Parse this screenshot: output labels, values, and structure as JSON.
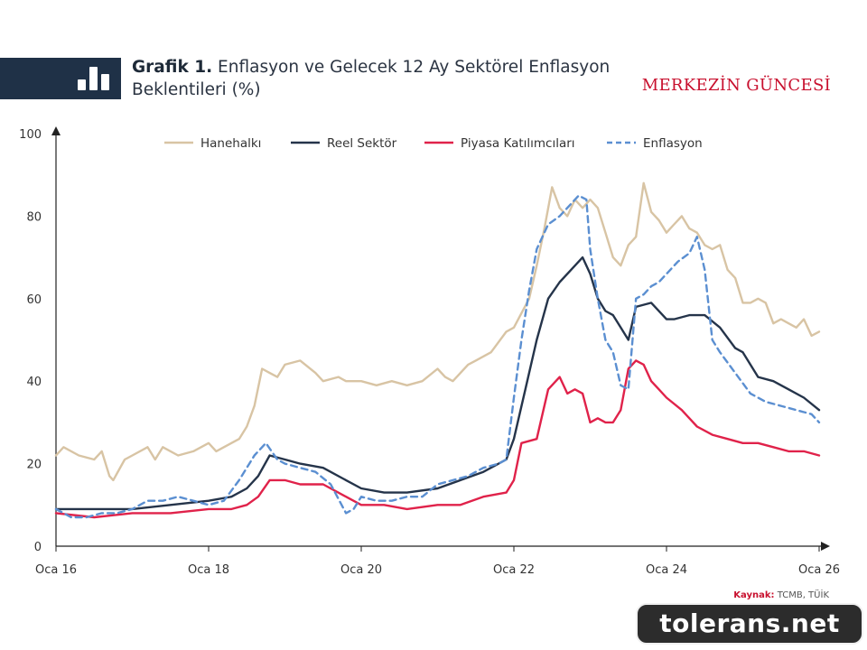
{
  "header": {
    "title_bold": "Grafik 1.",
    "title_rest": " Enflasyon ve Gelecek 12 Ay Sektörel Enflasyon Beklentileri (%)",
    "brand": "MERKEZİN GÜNCESİ"
  },
  "source": {
    "label": "Kaynak:",
    "text": " TCMB, TÜİK"
  },
  "watermark": "tolerans.net",
  "chart_data": {
    "type": "line",
    "title": "Grafik 1. Enflasyon ve Gelecek 12 Ay Sektörel Enflasyon Beklentileri (%)",
    "ylim": [
      0,
      100
    ],
    "yticks": [
      0,
      20,
      40,
      60,
      80,
      100
    ],
    "xlim": [
      2016.0,
      2026.0
    ],
    "xticks": [
      {
        "value": 2016,
        "label": "Oca 16"
      },
      {
        "value": 2018,
        "label": "Oca 18"
      },
      {
        "value": 2020,
        "label": "Oca 20"
      },
      {
        "value": 2022,
        "label": "Oca 22"
      },
      {
        "value": 2024,
        "label": "Oca 24"
      },
      {
        "value": 2026,
        "label": "Oca 26"
      }
    ],
    "grid": false,
    "legend": "top",
    "series": [
      {
        "name": "Hanehalkı",
        "color": "#d8c4a4",
        "dash": false,
        "x": [
          2016.0,
          2016.1,
          2016.3,
          2016.5,
          2016.6,
          2016.7,
          2016.75,
          2016.9,
          2017.0,
          2017.2,
          2017.3,
          2017.4,
          2017.6,
          2017.8,
          2018.0,
          2018.1,
          2018.2,
          2018.4,
          2018.5,
          2018.6,
          2018.7,
          2018.8,
          2018.9,
          2019.0,
          2019.2,
          2019.4,
          2019.5,
          2019.7,
          2019.8,
          2020.0,
          2020.2,
          2020.4,
          2020.6,
          2020.8,
          2021.0,
          2021.1,
          2021.2,
          2021.4,
          2021.5,
          2021.7,
          2021.9,
          2022.0,
          2022.2,
          2022.3,
          2022.4,
          2022.5,
          2022.6,
          2022.7,
          2022.8,
          2022.9,
          2023.0,
          2023.1,
          2023.2,
          2023.3,
          2023.4,
          2023.5,
          2023.6,
          2023.7,
          2023.8,
          2023.9,
          2024.0,
          2024.1,
          2024.2,
          2024.3,
          2024.4,
          2024.5,
          2024.6,
          2024.7,
          2024.8,
          2024.9,
          2025.0,
          2025.1,
          2025.2,
          2025.3,
          2025.4,
          2025.5,
          2025.6,
          2025.7,
          2025.8,
          2025.9,
          2026.0
        ],
        "y": [
          22,
          24,
          22,
          21,
          23,
          17,
          16,
          21,
          22,
          24,
          21,
          24,
          22,
          23,
          25,
          23,
          24,
          26,
          29,
          34,
          43,
          42,
          41,
          44,
          45,
          42,
          40,
          41,
          40,
          40,
          39,
          40,
          39,
          40,
          43,
          41,
          40,
          44,
          45,
          47,
          52,
          53,
          60,
          68,
          77,
          87,
          82,
          80,
          84,
          82,
          84,
          82,
          76,
          70,
          68,
          73,
          75,
          88,
          81,
          79,
          76,
          78,
          80,
          77,
          76,
          73,
          72,
          73,
          67,
          65,
          59,
          59,
          60,
          59,
          54,
          55,
          54,
          53,
          55,
          51,
          52
        ]
      },
      {
        "name": "Reel Sektör",
        "color": "#25344a",
        "dash": false,
        "x": [
          2016.0,
          2016.5,
          2017.0,
          2017.5,
          2018.0,
          2018.3,
          2018.5,
          2018.65,
          2018.8,
          2019.0,
          2019.2,
          2019.5,
          2019.8,
          2020.0,
          2020.3,
          2020.6,
          2021.0,
          2021.3,
          2021.6,
          2021.9,
          2022.0,
          2022.15,
          2022.3,
          2022.45,
          2022.6,
          2022.75,
          2022.9,
          2023.0,
          2023.1,
          2023.2,
          2023.3,
          2023.4,
          2023.5,
          2023.6,
          2023.8,
          2024.0,
          2024.1,
          2024.3,
          2024.5,
          2024.7,
          2024.9,
          2025.0,
          2025.2,
          2025.4,
          2025.6,
          2025.8,
          2026.0
        ],
        "y": [
          9,
          9,
          9,
          10,
          11,
          12,
          14,
          17,
          22,
          21,
          20,
          19,
          16,
          14,
          13,
          13,
          14,
          16,
          18,
          21,
          26,
          38,
          50,
          60,
          64,
          67,
          70,
          66,
          60,
          57,
          56,
          53,
          50,
          58,
          59,
          55,
          55,
          56,
          56,
          53,
          48,
          47,
          41,
          40,
          38,
          36,
          33
        ]
      },
      {
        "name": "Piyasa Katılımcıları",
        "color": "#e0224a",
        "dash": false,
        "x": [
          2016.0,
          2016.5,
          2017.0,
          2017.5,
          2018.0,
          2018.3,
          2018.5,
          2018.65,
          2018.8,
          2019.0,
          2019.2,
          2019.5,
          2019.8,
          2020.0,
          2020.3,
          2020.6,
          2021.0,
          2021.3,
          2021.6,
          2021.9,
          2022.0,
          2022.1,
          2022.3,
          2022.45,
          2022.6,
          2022.7,
          2022.8,
          2022.9,
          2023.0,
          2023.1,
          2023.2,
          2023.3,
          2023.4,
          2023.5,
          2023.6,
          2023.7,
          2023.8,
          2023.9,
          2024.0,
          2024.2,
          2024.4,
          2024.6,
          2024.8,
          2025.0,
          2025.2,
          2025.4,
          2025.6,
          2025.8,
          2026.0
        ],
        "y": [
          8,
          7,
          8,
          8,
          9,
          9,
          10,
          12,
          16,
          16,
          15,
          15,
          12,
          10,
          10,
          9,
          10,
          10,
          12,
          13,
          16,
          25,
          26,
          38,
          41,
          37,
          38,
          37,
          30,
          31,
          30,
          30,
          33,
          43,
          45,
          44,
          40,
          38,
          36,
          33,
          29,
          27,
          26,
          25,
          25,
          24,
          23,
          23,
          22
        ]
      },
      {
        "name": "Enflasyon",
        "color": "#5b8fd1",
        "dash": true,
        "x": [
          2016.0,
          2016.2,
          2016.4,
          2016.6,
          2016.8,
          2017.0,
          2017.2,
          2017.4,
          2017.6,
          2017.8,
          2018.0,
          2018.2,
          2018.4,
          2018.6,
          2018.75,
          2018.9,
          2019.0,
          2019.2,
          2019.4,
          2019.6,
          2019.8,
          2019.9,
          2020.0,
          2020.2,
          2020.4,
          2020.6,
          2020.8,
          2021.0,
          2021.2,
          2021.4,
          2021.6,
          2021.8,
          2021.9,
          2022.0,
          2022.1,
          2022.2,
          2022.3,
          2022.45,
          2022.6,
          2022.75,
          2022.85,
          2022.95,
          2023.0,
          2023.1,
          2023.2,
          2023.3,
          2023.4,
          2023.5,
          2023.6,
          2023.7,
          2023.8,
          2023.9,
          2024.0,
          2024.15,
          2024.3,
          2024.4,
          2024.5,
          2024.6,
          2024.7,
          2024.9,
          2025.1,
          2025.3,
          2025.5,
          2025.7,
          2025.9,
          2026.0
        ],
        "y": [
          9,
          7,
          7,
          8,
          8,
          9,
          11,
          11,
          12,
          11,
          10,
          11,
          16,
          22,
          25,
          21,
          20,
          19,
          18,
          15,
          8,
          9,
          12,
          11,
          11,
          12,
          12,
          15,
          16,
          17,
          19,
          20,
          21,
          36,
          50,
          62,
          72,
          78,
          80,
          83,
          85,
          84,
          72,
          60,
          50,
          47,
          39,
          38,
          60,
          61,
          63,
          64,
          66,
          69,
          71,
          75,
          67,
          50,
          47,
          42,
          37,
          35,
          34,
          33,
          32,
          30
        ]
      }
    ]
  }
}
